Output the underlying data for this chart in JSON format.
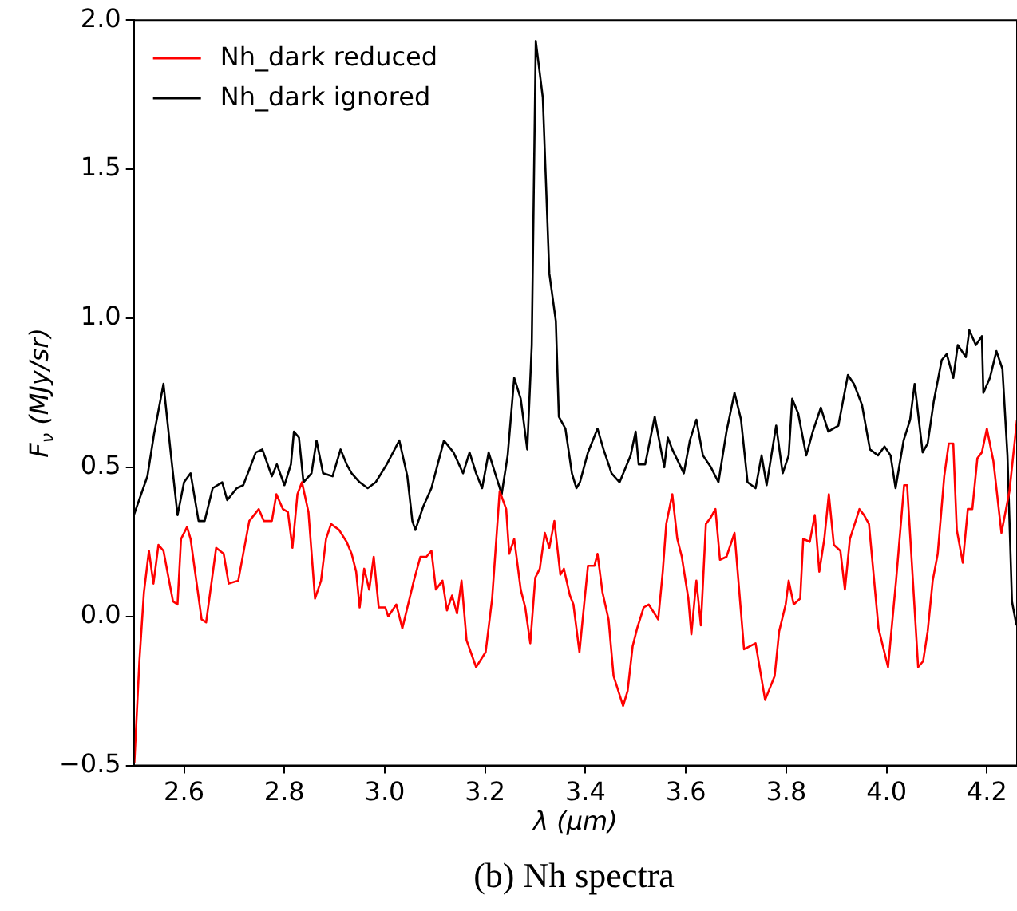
{
  "chart_data": {
    "type": "line",
    "xlabel": "λ (μm)",
    "ylabel": "F$_{ν}$ (MJy/sr)",
    "annotations": [
      "(b) Nh spectra"
    ],
    "xlim": [
      2.5,
      4.26
    ],
    "ylim": [
      -0.5,
      2.0
    ],
    "xticks": [
      2.6,
      2.8,
      {
        "value": 3.0,
        "label": "3.0"
      },
      3.2,
      3.4,
      3.6,
      3.8,
      {
        "value": 4.0,
        "label": "4.0"
      },
      4.2
    ],
    "yticks": [
      {
        "value": -0.5,
        "label": "−0.5"
      },
      {
        "value": 0,
        "label": "0.0"
      },
      0.5,
      {
        "value": 1.0,
        "label": "1.0"
      },
      1.5,
      {
        "value": 2.0,
        "label": "2.0"
      }
    ],
    "grid": false,
    "legend": "top left",
    "marker": "none",
    "line_style": "solid",
    "series": [
      {
        "name": "Nh_dark reduced",
        "color": "#ff0000",
        "x": [
          2.501,
          2.511,
          2.52,
          2.53,
          2.539,
          2.549,
          2.559,
          2.578,
          2.587,
          2.594,
          2.606,
          2.613,
          2.635,
          2.644,
          2.664,
          2.679,
          2.689,
          2.708,
          2.73,
          2.749,
          2.759,
          2.775,
          2.784,
          2.797,
          2.807,
          2.816,
          2.826,
          2.835,
          2.848,
          2.861,
          2.873,
          2.883,
          2.893,
          2.909,
          2.924,
          2.934,
          2.943,
          2.95,
          2.959,
          2.969,
          2.978,
          2.988,
          3.001,
          3.007,
          3.023,
          3.035,
          3.048,
          3.058,
          3.071,
          3.083,
          3.093,
          3.102,
          3.115,
          3.124,
          3.134,
          3.144,
          3.153,
          3.163,
          3.182,
          3.201,
          3.214,
          3.229,
          3.242,
          3.248,
          3.258,
          3.271,
          3.28,
          3.29,
          3.3,
          3.309,
          3.319,
          3.328,
          3.338,
          3.35,
          3.357,
          3.369,
          3.376,
          3.388,
          3.395,
          3.405,
          3.418,
          3.424,
          3.434,
          3.446,
          3.456,
          3.475,
          3.484,
          3.494,
          3.503,
          3.516,
          3.526,
          3.545,
          3.554,
          3.561,
          3.573,
          3.583,
          3.592,
          3.605,
          3.611,
          3.621,
          3.63,
          3.64,
          3.649,
          3.659,
          3.668,
          3.681,
          3.697,
          3.716,
          3.739,
          3.758,
          3.777,
          3.786,
          3.799,
          3.805,
          3.815,
          3.828,
          3.834,
          3.847,
          3.857,
          3.866,
          3.876,
          3.885,
          3.895,
          3.908,
          3.917,
          3.927,
          3.946,
          3.955,
          3.965,
          3.984,
          4.003,
          4.019,
          4.035,
          4.041,
          4.063,
          4.073,
          4.082,
          4.092,
          4.102,
          4.115,
          4.124,
          4.133,
          4.14,
          4.152,
          4.162,
          4.171,
          4.181,
          4.19,
          4.2,
          4.213,
          4.229,
          4.245,
          4.26
        ],
        "values": [
          -0.49,
          -0.15,
          0.08,
          0.22,
          0.11,
          0.24,
          0.22,
          0.05,
          0.04,
          0.26,
          0.3,
          0.26,
          -0.01,
          -0.02,
          0.23,
          0.21,
          0.11,
          0.12,
          0.32,
          0.36,
          0.32,
          0.32,
          0.41,
          0.36,
          0.35,
          0.23,
          0.41,
          0.45,
          0.35,
          0.06,
          0.12,
          0.26,
          0.31,
          0.29,
          0.25,
          0.21,
          0.15,
          0.03,
          0.16,
          0.09,
          0.2,
          0.03,
          0.03,
          0.0,
          0.04,
          -0.04,
          0.05,
          0.12,
          0.2,
          0.2,
          0.22,
          0.09,
          0.12,
          0.02,
          0.07,
          0.01,
          0.12,
          -0.08,
          -0.17,
          -0.12,
          0.06,
          0.42,
          0.36,
          0.21,
          0.26,
          0.09,
          0.03,
          -0.09,
          0.13,
          0.16,
          0.28,
          0.23,
          0.32,
          0.14,
          0.16,
          0.07,
          0.04,
          -0.12,
          0.0,
          0.17,
          0.17,
          0.21,
          0.08,
          -0.01,
          -0.2,
          -0.3,
          -0.25,
          -0.1,
          -0.04,
          0.03,
          0.04,
          -0.01,
          0.15,
          0.31,
          0.41,
          0.26,
          0.2,
          0.06,
          -0.06,
          0.12,
          -0.03,
          0.31,
          0.33,
          0.36,
          0.19,
          0.2,
          0.28,
          -0.11,
          -0.09,
          -0.28,
          -0.2,
          -0.05,
          0.04,
          0.12,
          0.04,
          0.06,
          0.26,
          0.25,
          0.34,
          0.15,
          0.26,
          0.41,
          0.24,
          0.22,
          0.09,
          0.26,
          0.36,
          0.34,
          0.31,
          -0.04,
          -0.17,
          0.12,
          0.44,
          0.44,
          -0.17,
          -0.15,
          -0.05,
          0.12,
          0.21,
          0.47,
          0.58,
          0.58,
          0.29,
          0.18,
          0.36,
          0.36,
          0.53,
          0.55,
          0.63,
          0.52,
          0.28,
          0.42,
          0.66
        ]
      },
      {
        "name": "Nh_dark ignored",
        "color": "#000000",
        "x": [
          2.5,
          2.527,
          2.54,
          2.559,
          2.574,
          2.587,
          2.6,
          2.613,
          2.629,
          2.641,
          2.657,
          2.676,
          2.686,
          2.705,
          2.718,
          2.734,
          2.743,
          2.756,
          2.775,
          2.785,
          2.8,
          2.813,
          2.819,
          2.829,
          2.838,
          2.854,
          2.864,
          2.877,
          2.896,
          2.912,
          2.924,
          2.934,
          2.95,
          2.966,
          2.982,
          3.004,
          3.029,
          3.045,
          3.055,
          3.061,
          3.077,
          3.093,
          3.118,
          3.137,
          3.156,
          3.169,
          3.182,
          3.194,
          3.207,
          3.22,
          3.233,
          3.245,
          3.258,
          3.271,
          3.284,
          3.293,
          3.301,
          3.315,
          3.328,
          3.341,
          3.347,
          3.36,
          3.373,
          3.382,
          3.389,
          3.405,
          3.424,
          3.436,
          3.452,
          3.468,
          3.49,
          3.5,
          3.506,
          3.519,
          3.538,
          3.557,
          3.564,
          3.573,
          3.596,
          3.608,
          3.621,
          3.634,
          3.65,
          3.665,
          3.681,
          3.697,
          3.71,
          3.723,
          3.739,
          3.751,
          3.761,
          3.78,
          3.793,
          3.805,
          3.812,
          3.824,
          3.84,
          3.853,
          3.869,
          3.884,
          3.904,
          3.923,
          3.935,
          3.951,
          3.967,
          3.983,
          3.996,
          4.008,
          4.018,
          4.034,
          4.047,
          4.056,
          4.072,
          4.082,
          4.094,
          4.11,
          4.12,
          4.133,
          4.142,
          4.158,
          4.165,
          4.178,
          4.19,
          4.193,
          4.206,
          4.219,
          4.231,
          4.241,
          4.25,
          4.259
        ],
        "values": [
          0.34,
          0.47,
          0.61,
          0.78,
          0.54,
          0.34,
          0.45,
          0.48,
          0.32,
          0.32,
          0.43,
          0.45,
          0.39,
          0.43,
          0.44,
          0.51,
          0.55,
          0.56,
          0.47,
          0.51,
          0.44,
          0.51,
          0.62,
          0.6,
          0.45,
          0.48,
          0.59,
          0.48,
          0.47,
          0.56,
          0.51,
          0.48,
          0.45,
          0.43,
          0.45,
          0.51,
          0.59,
          0.47,
          0.32,
          0.29,
          0.37,
          0.43,
          0.59,
          0.55,
          0.48,
          0.55,
          0.48,
          0.43,
          0.55,
          0.48,
          0.41,
          0.54,
          0.8,
          0.73,
          0.56,
          0.91,
          1.93,
          1.74,
          1.15,
          0.99,
          0.67,
          0.63,
          0.48,
          0.43,
          0.45,
          0.55,
          0.63,
          0.56,
          0.48,
          0.45,
          0.54,
          0.62,
          0.51,
          0.51,
          0.67,
          0.5,
          0.6,
          0.56,
          0.48,
          0.59,
          0.66,
          0.54,
          0.5,
          0.45,
          0.62,
          0.75,
          0.66,
          0.45,
          0.43,
          0.54,
          0.44,
          0.64,
          0.48,
          0.54,
          0.73,
          0.68,
          0.54,
          0.62,
          0.7,
          0.62,
          0.64,
          0.81,
          0.78,
          0.71,
          0.56,
          0.54,
          0.57,
          0.54,
          0.43,
          0.59,
          0.66,
          0.78,
          0.55,
          0.58,
          0.72,
          0.86,
          0.88,
          0.8,
          0.91,
          0.87,
          0.96,
          0.91,
          0.94,
          0.75,
          0.8,
          0.89,
          0.83,
          0.54,
          0.05,
          -0.03
        ]
      }
    ]
  }
}
